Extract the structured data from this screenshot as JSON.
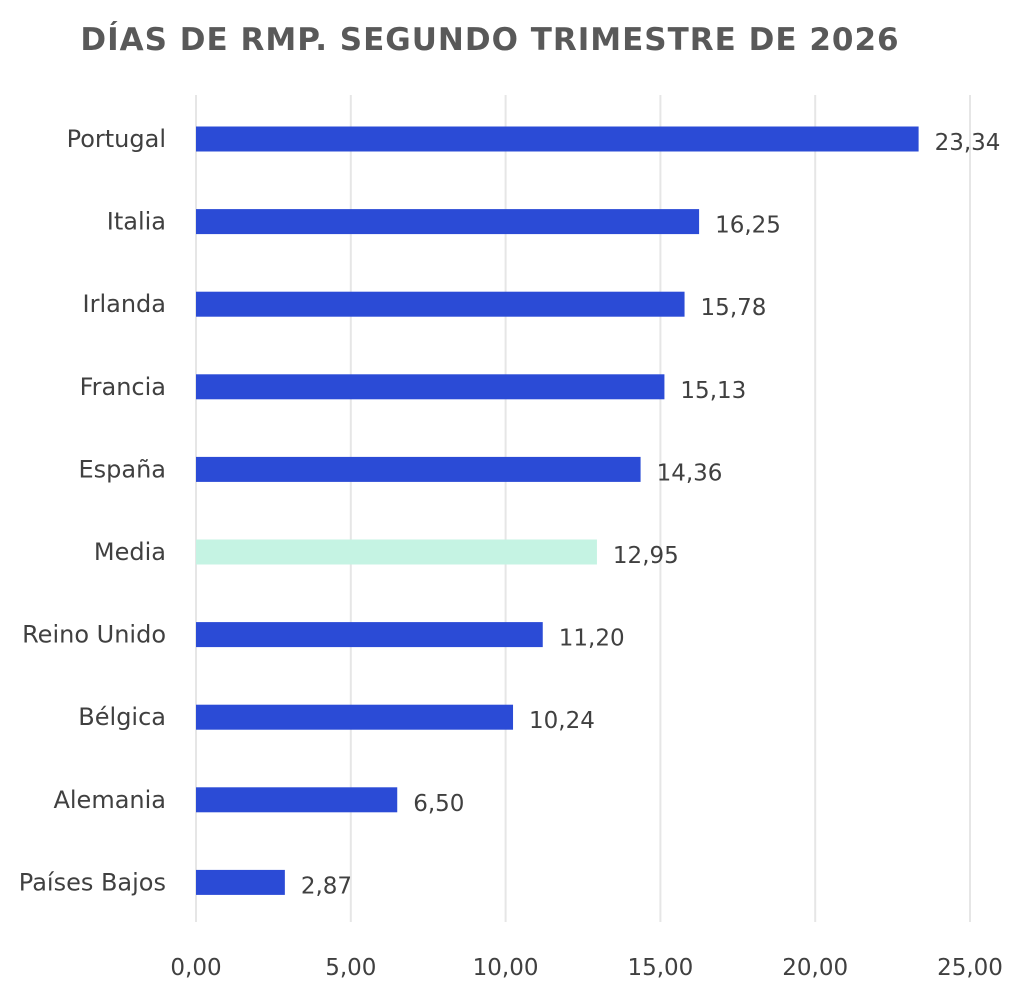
{
  "chart_data": {
    "type": "bar",
    "orientation": "horizontal",
    "title": "DÍAS DE RMP. SEGUNDO TRIMESTRE DE 2026",
    "xlabel": "",
    "ylabel": "",
    "categories": [
      "Portugal",
      "Italia",
      "Irlanda",
      "Francia",
      "España",
      "Media",
      "Reino Unido",
      "Bélgica",
      "Alemania",
      "Países Bajos"
    ],
    "values": [
      23.34,
      16.25,
      15.78,
      15.13,
      14.36,
      12.95,
      11.2,
      10.24,
      6.5,
      2.87
    ],
    "value_labels": [
      "23,34",
      "16,25",
      "15,78",
      "15,13",
      "14,36",
      "12,95",
      "11,20",
      "10,24",
      "6,50",
      "2,87"
    ],
    "xlim": [
      0,
      25
    ],
    "x_ticks": [
      0,
      5,
      10,
      15,
      20,
      25
    ],
    "x_tick_labels": [
      "0,00",
      "5,00",
      "10,00",
      "15,00",
      "20,00",
      "25,00"
    ],
    "grid": "vertical",
    "legend": "none",
    "colors": {
      "default_bar": "#2b4bd6",
      "highlight_bar": "#c5f3e3",
      "highlight_category": "Media",
      "grid": "#e6e6e6",
      "title": "#595959",
      "text": "#404040"
    }
  }
}
